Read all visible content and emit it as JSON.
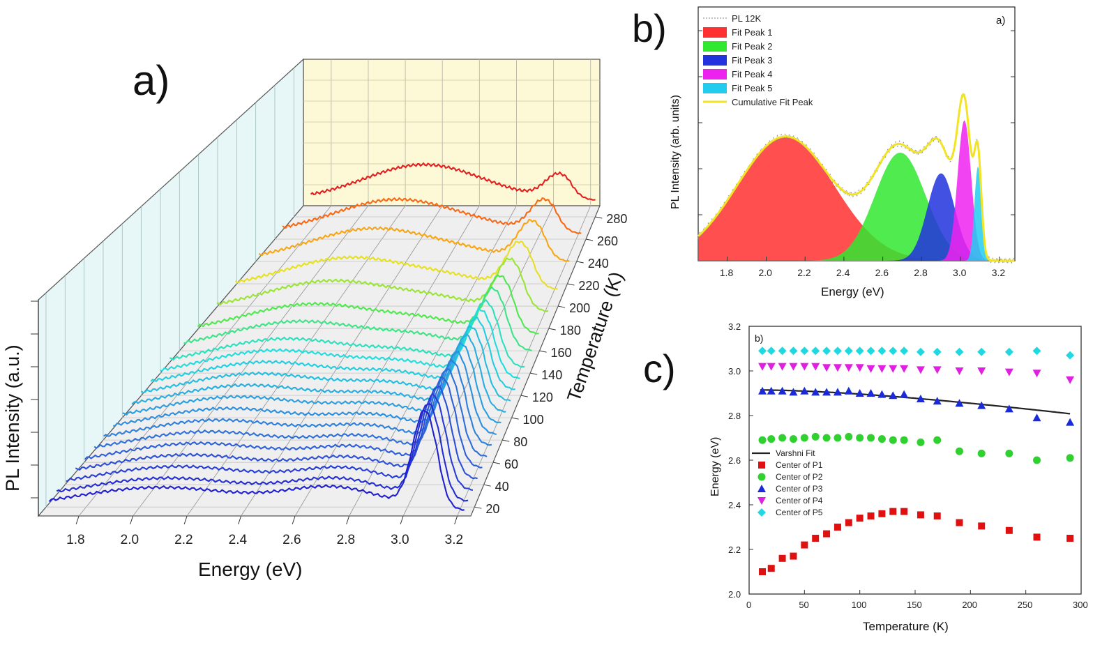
{
  "panels": {
    "a": "a)",
    "b": "b)",
    "c": "c)"
  },
  "chart_data": [
    {
      "id": "a",
      "type": "line",
      "subtype": "3d-waterfall",
      "title": "",
      "xlabel": "Energy (eV)",
      "ylabel": "PL Intensity (a.u.)",
      "zlabel": "Temperature (K)",
      "xlim": [
        1.65,
        3.25
      ],
      "x_ticks": [
        "1.8",
        "2.0",
        "2.2",
        "2.4",
        "2.6",
        "2.8",
        "3.0",
        "3.2"
      ],
      "z_ticks": [
        "20",
        "40",
        "60",
        "80",
        "100",
        "120",
        "140",
        "160",
        "180",
        "200",
        "220",
        "240",
        "260",
        "280"
      ],
      "temperatures": [
        12,
        20,
        30,
        40,
        50,
        60,
        70,
        80,
        90,
        100,
        110,
        120,
        130,
        140,
        155,
        170,
        190,
        210,
        235,
        260,
        290
      ],
      "series_color_scale": [
        "#2020d0",
        "#2f62d8",
        "#2aa0e0",
        "#20dede",
        "#50e84a",
        "#e8e020",
        "#ff8010",
        "#e02020"
      ],
      "peak_energy_eV": 3.08,
      "broad_peak_energy_eV": 2.1
    },
    {
      "id": "b",
      "type": "area",
      "title": "",
      "xlabel": "Energy (eV)",
      "ylabel": "PL Intensity (arb. units)",
      "xlim": [
        1.65,
        3.28
      ],
      "x_ticks": [
        "1.8",
        "2.0",
        "2.2",
        "2.4",
        "2.6",
        "2.8",
        "3.0",
        "3.2"
      ],
      "inset_label": "a)",
      "legend": [
        "PL 12K",
        "Fit Peak 1",
        "Fit Peak 2",
        "Fit Peak 3",
        "Fit Peak 4",
        "Fit Peak 5",
        "Cumulative Fit Peak"
      ],
      "legend_position": "top-left",
      "series": [
        {
          "name": "Fit Peak 1",
          "center": 2.1,
          "width": 0.25,
          "amplitude": 0.54,
          "color": "#ff3030"
        },
        {
          "name": "Fit Peak 2",
          "center": 2.69,
          "width": 0.13,
          "amplitude": 0.47,
          "color": "#30e830"
        },
        {
          "name": "Fit Peak 3",
          "center": 2.9,
          "width": 0.07,
          "amplitude": 0.38,
          "color": "#2233dd"
        },
        {
          "name": "Fit Peak 4",
          "center": 3.02,
          "width": 0.035,
          "amplitude": 0.61,
          "color": "#ee22ee"
        },
        {
          "name": "Fit Peak 5",
          "center": 3.09,
          "width": 0.018,
          "amplitude": 0.41,
          "color": "#22ccee"
        }
      ]
    },
    {
      "id": "c",
      "type": "scatter",
      "title": "",
      "xlabel": "Temperature (K)",
      "ylabel": "Energy (eV)",
      "xlim": [
        0,
        300
      ],
      "ylim": [
        2.0,
        3.2
      ],
      "x_ticks": [
        "0",
        "50",
        "100",
        "150",
        "200",
        "250",
        "300"
      ],
      "y_ticks": [
        "2.0",
        "2.2",
        "2.4",
        "2.6",
        "2.8",
        "3.0",
        "3.2"
      ],
      "inset_label": "b)",
      "legend": [
        "Varshni Fit",
        "Center of P1",
        "Center of P2",
        "Center of P3",
        "Center of P4",
        "Center of P5"
      ],
      "legend_position": "middle-left",
      "x": [
        12,
        20,
        30,
        40,
        50,
        60,
        70,
        80,
        90,
        100,
        110,
        120,
        130,
        140,
        155,
        170,
        190,
        210,
        235,
        260,
        290
      ],
      "series": [
        {
          "name": "Center of P1",
          "marker": "square",
          "color": "#e01010",
          "values": [
            2.1,
            2.115,
            2.16,
            2.17,
            2.22,
            2.25,
            2.27,
            2.3,
            2.32,
            2.34,
            2.35,
            2.36,
            2.37,
            2.37,
            2.355,
            2.35,
            2.32,
            2.305,
            2.285,
            2.255,
            2.25
          ]
        },
        {
          "name": "Center of P2",
          "marker": "circle",
          "color": "#30d030",
          "values": [
            2.69,
            2.695,
            2.7,
            2.695,
            2.7,
            2.705,
            2.7,
            2.7,
            2.705,
            2.7,
            2.7,
            2.695,
            2.69,
            2.69,
            2.68,
            2.69,
            2.64,
            2.63,
            2.63,
            2.6,
            2.61
          ]
        },
        {
          "name": "Center of P3",
          "marker": "triangle-up",
          "color": "#1a2ad8",
          "values": [
            2.91,
            2.91,
            2.91,
            2.905,
            2.91,
            2.905,
            2.905,
            2.905,
            2.91,
            2.9,
            2.9,
            2.895,
            2.89,
            2.895,
            2.875,
            2.865,
            2.855,
            2.845,
            2.83,
            2.79,
            2.77
          ]
        },
        {
          "name": "Center of P4",
          "marker": "triangle-down",
          "color": "#e020e0",
          "values": [
            3.02,
            3.02,
            3.02,
            3.02,
            3.02,
            3.02,
            3.015,
            3.015,
            3.015,
            3.015,
            3.01,
            3.01,
            3.01,
            3.01,
            3.005,
            3.005,
            3.0,
            3.0,
            2.995,
            2.99,
            2.96
          ]
        },
        {
          "name": "Center of P5",
          "marker": "diamond",
          "color": "#20d8e0",
          "values": [
            3.09,
            3.09,
            3.09,
            3.09,
            3.09,
            3.09,
            3.09,
            3.09,
            3.09,
            3.09,
            3.09,
            3.09,
            3.09,
            3.09,
            3.085,
            3.085,
            3.085,
            3.085,
            3.085,
            3.09,
            3.07
          ]
        }
      ],
      "fit": {
        "name": "Varshni Fit",
        "color": "#222222",
        "E0": 2.915,
        "alpha": 0.00075,
        "beta": 300
      }
    }
  ]
}
